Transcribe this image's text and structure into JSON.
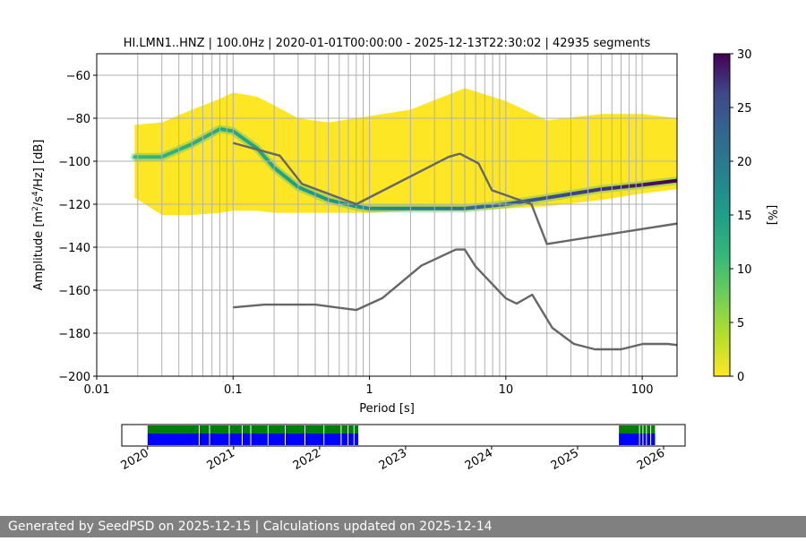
{
  "chart_data": {
    "type": "heatmap",
    "title": "HI.LMN1..HNZ | 100.0Hz | 2020-01-01T00:00:00 - 2025-12-13T22:30:02 | 42935 segments",
    "xlabel": "Period [s]",
    "ylabel_prefix": "Amplitude [m",
    "ylabel_suffix": " [dB]",
    "x_scale": "log",
    "xlim": [
      0.01,
      180
    ],
    "ylim": [
      -200,
      -50
    ],
    "x_ticks": [
      "0.01",
      "0.1",
      "1",
      "10",
      "100"
    ],
    "y_ticks": [
      "−60",
      "−80",
      "−100",
      "−120",
      "−140",
      "−160",
      "−180",
      "−200"
    ],
    "grid_period_lines": [
      0.02,
      0.03,
      0.04,
      0.05,
      0.06,
      0.07,
      0.08,
      0.09,
      0.1,
      0.2,
      0.3,
      0.4,
      0.5,
      0.6,
      0.7,
      0.8,
      0.9,
      1,
      2,
      3,
      4,
      5,
      6,
      7,
      8,
      9,
      10,
      20,
      30,
      40,
      50,
      60,
      70,
      80,
      90,
      100
    ],
    "colorbar": {
      "label": "[%]",
      "min": 0,
      "max": 30,
      "ticks": [
        "0",
        "5",
        "10",
        "15",
        "20",
        "25",
        "30"
      ]
    },
    "mode_curve": {
      "period": [
        0.019,
        0.03,
        0.05,
        0.08,
        0.1,
        0.15,
        0.2,
        0.3,
        0.5,
        0.8,
        1,
        2,
        5,
        10,
        20,
        50,
        100,
        180
      ],
      "db": [
        -98,
        -98,
        -92,
        -85,
        -86,
        -94,
        -103,
        -112,
        -118,
        -121,
        -122,
        -122,
        -122,
        -120,
        -117,
        -113,
        -111,
        -109
      ]
    },
    "distribution_envelope": {
      "period": [
        0.019,
        0.03,
        0.05,
        0.08,
        0.1,
        0.15,
        0.2,
        0.3,
        0.5,
        1,
        2,
        5,
        10,
        20,
        50,
        100,
        180
      ],
      "upper_db": [
        -83,
        -82,
        -76,
        -71,
        -68,
        -70,
        -74,
        -80,
        -82,
        -79,
        -76,
        -66,
        -72,
        -81,
        -78,
        -78,
        -80
      ],
      "lower_db": [
        -117,
        -125,
        -125,
        -124,
        -123,
        -123,
        -124,
        -124,
        -124,
        -124,
        -123,
        -123,
        -122,
        -121,
        -118,
        -115,
        -113
      ]
    },
    "nhnm": {
      "period": [
        0.1,
        0.22,
        0.32,
        0.8,
        3.8,
        4.6,
        6.3,
        7.9,
        15.4,
        20,
        180
      ],
      "db": [
        -91.5,
        -97.4,
        -110.5,
        -120,
        -98,
        -96.5,
        -101,
        -113.5,
        -120,
        -138.5,
        -129
      ]
    },
    "nlnm": {
      "period": [
        0.1,
        0.17,
        0.4,
        0.8,
        1.24,
        2.4,
        4.3,
        5,
        6,
        10,
        12,
        15.6,
        21.9,
        31.6,
        45,
        70,
        101,
        154,
        180
      ],
      "db": [
        -168,
        -166.7,
        -166.7,
        -169.2,
        -163.7,
        -148.6,
        -141.1,
        -141.1,
        -149,
        -163.8,
        -166.2,
        -162.1,
        -177.5,
        -185,
        -187.5,
        -187.5,
        -185,
        -185,
        -185.5
      ]
    },
    "coverage": {
      "x_ticks": [
        "2020",
        "2021",
        "2022",
        "2023",
        "2024",
        "2025",
        "2026"
      ],
      "tick_years": [
        2020,
        2021,
        2022,
        2023,
        2024,
        2025,
        2026
      ],
      "xlim_years": [
        2019.7,
        2026.25
      ],
      "intervals_years": [
        [
          2020.0,
          2022.45
        ],
        [
          2025.48,
          2025.9
        ]
      ],
      "gap_years": [
        2020.6,
        2020.72,
        2020.95,
        2021.1,
        2021.2,
        2021.4,
        2021.6,
        2021.83,
        2022.05,
        2022.25,
        2022.33,
        2022.4,
        2025.72,
        2025.76,
        2025.8,
        2025.85
      ],
      "psd_color": "#0000ff",
      "data_color": "#008000"
    }
  },
  "colors": {
    "curve": "#666666",
    "grid": "#b0b0b0",
    "footer_bg": "#808080",
    "footer_text": "#ffffff"
  },
  "footer": {
    "text": "Generated by SeedPSD on 2025-12-15 | Calculations updated on 2025-12-14"
  }
}
